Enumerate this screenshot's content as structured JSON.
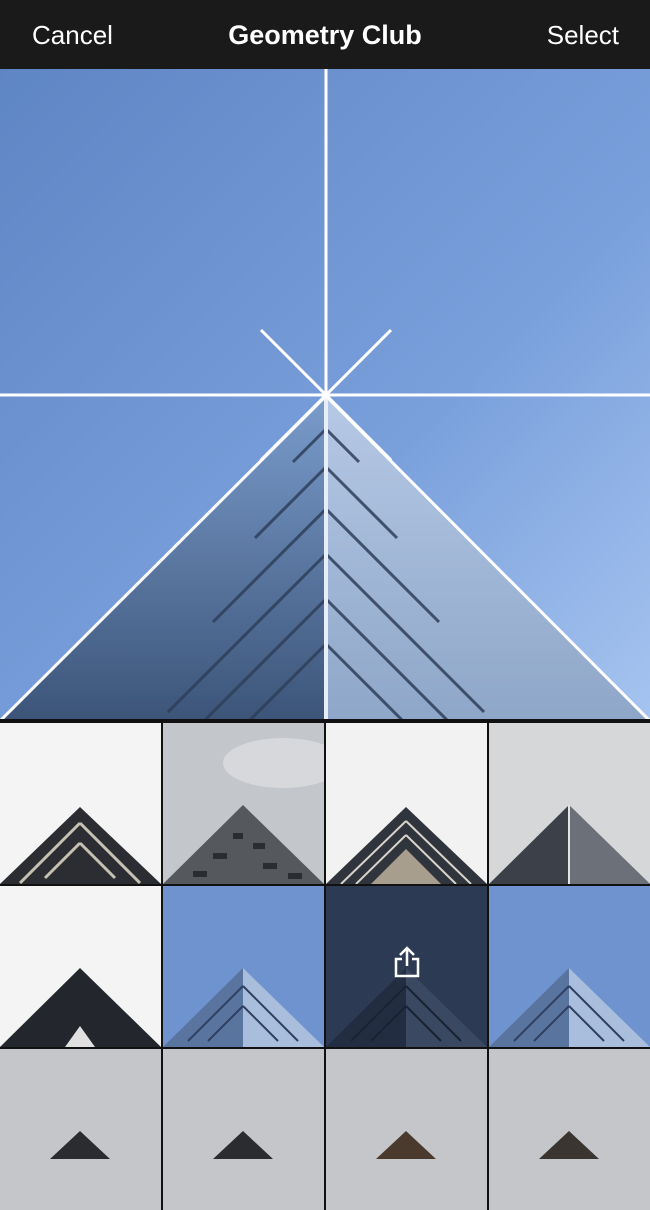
{
  "header": {
    "cancel_label": "Cancel",
    "title": "Geometry Club",
    "select_label": "Select"
  },
  "colors": {
    "header_bg": "#1a1a1a",
    "sky_blue": "#6b93d3",
    "grid_lines": "#ffffff",
    "grey_sky": "#c9ccd0",
    "white_sky": "#f4f4f4",
    "dark_building": "#2b2d33"
  },
  "icons": {
    "share": "share-icon"
  },
  "thumbnails": [
    {
      "sky": "white",
      "building": "dark-balconies"
    },
    {
      "sky": "cloudy",
      "building": "patterned-facade"
    },
    {
      "sky": "white",
      "building": "dark-layers"
    },
    {
      "sky": "grey",
      "building": "dark-glass"
    },
    {
      "sky": "white",
      "building": "black-peak"
    },
    {
      "sky": "blue",
      "building": "glass-tower"
    },
    {
      "sky": "dark-blue",
      "building": "glass-tower",
      "selected": true,
      "overlay_icon": "share-icon"
    },
    {
      "sky": "blue",
      "building": "glass-tower"
    },
    {
      "sky": "grey",
      "building": "small-peak"
    },
    {
      "sky": "grey",
      "building": "small-peak"
    },
    {
      "sky": "grey",
      "building": "small-peak"
    },
    {
      "sky": "grey",
      "building": "small-peak"
    }
  ]
}
